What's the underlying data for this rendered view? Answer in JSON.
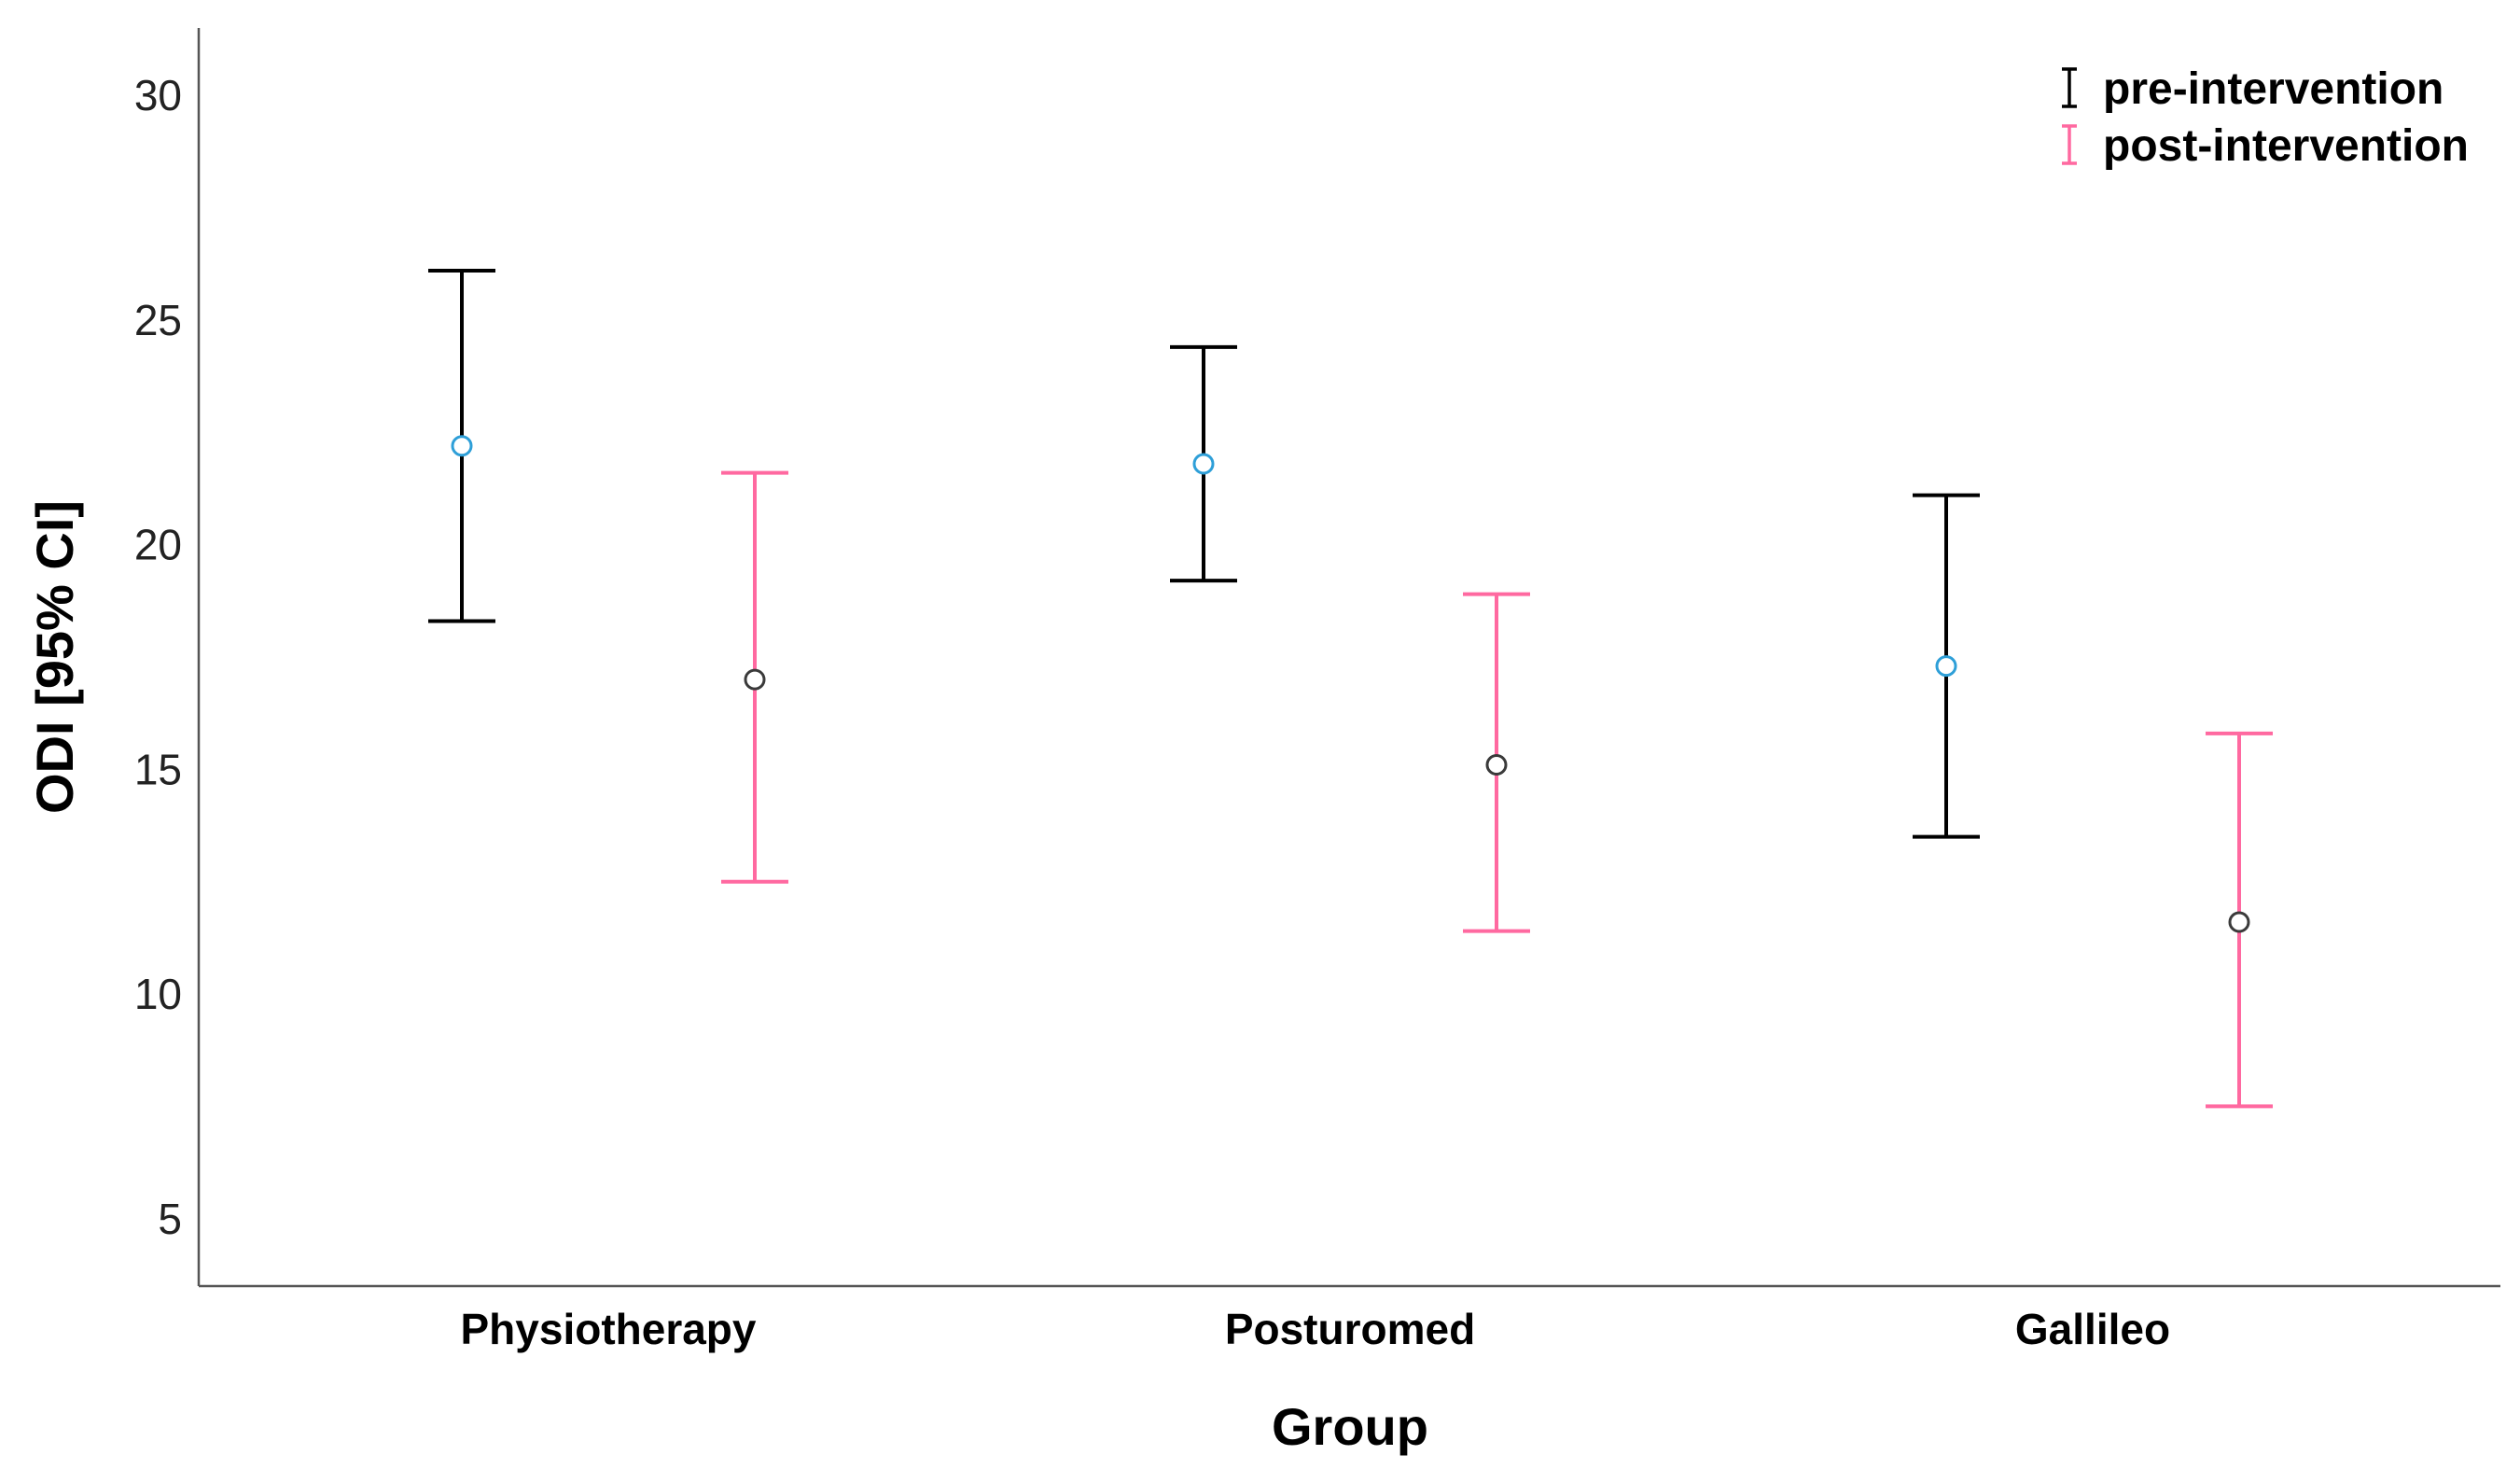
{
  "chart_data": {
    "type": "errorbar",
    "title": "",
    "xlabel": "Group",
    "ylabel": "ODI [95% CI]",
    "ylim": [
      3.5,
      31.5
    ],
    "yticks": [
      5,
      10,
      15,
      20,
      25,
      30
    ],
    "grid": false,
    "legend_position": "top-right",
    "categories": [
      "Physiotherapy",
      "Posturomed",
      "Gallileo"
    ],
    "series": [
      {
        "name": "pre-intervention",
        "color": "#000000",
        "marker_color": "#2e9fd8",
        "mean": [
          22.2,
          21.8,
          17.3
        ],
        "lower": [
          18.3,
          19.2,
          13.5
        ],
        "upper": [
          26.1,
          24.4,
          21.1
        ]
      },
      {
        "name": "post-intervention",
        "color": "#ff69a0",
        "marker_color": "#3a3a3a",
        "mean": [
          17.0,
          15.1,
          11.6
        ],
        "lower": [
          12.5,
          11.4,
          7.5
        ],
        "upper": [
          21.6,
          18.9,
          15.8
        ]
      }
    ]
  }
}
